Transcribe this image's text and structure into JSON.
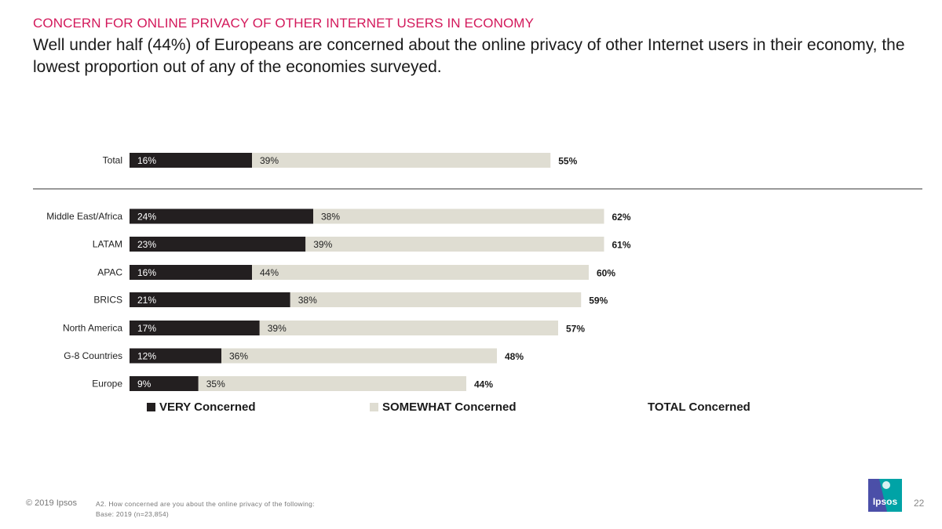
{
  "header": {
    "kicker": "CONCERN FOR ONLINE PRIVACY OF OTHER INTERNET USERS IN ECONOMY",
    "headline": "Well under half (44%) of Europeans are concerned about the online privacy of other Internet users in their economy, the lowest proportion out of any of the economies surveyed."
  },
  "chart_data": {
    "type": "bar",
    "orientation": "horizontal",
    "stacked": true,
    "categories": [
      "Total",
      "Middle East/Africa",
      "LATAM",
      "APAC",
      "BRICS",
      "North America",
      "G-8 Countries",
      "Europe"
    ],
    "series": [
      {
        "name": "VERY Concerned",
        "values": [
          16,
          24,
          23,
          16,
          21,
          17,
          12,
          9
        ],
        "color": "#231f20"
      },
      {
        "name": "SOMEWHAT Concerned",
        "values": [
          39,
          38,
          39,
          44,
          38,
          39,
          36,
          35
        ],
        "color": "#dfddd2"
      }
    ],
    "totals": {
      "name": "TOTAL Concerned",
      "values": [
        55,
        62,
        61,
        60,
        59,
        57,
        48,
        44
      ]
    },
    "value_suffix": "%",
    "xlim": [
      0,
      100
    ],
    "legend_position": "bottom"
  },
  "legend": {
    "very": "VERY Concerned",
    "somewhat": "SOMEWHAT Concerned",
    "total": "TOTAL Concerned"
  },
  "footer": {
    "copyright": "© 2019 Ipsos",
    "question": "A2. How concerned are you about the online privacy of the following:",
    "base": "Base: 2019 (n=23,854)",
    "page_number": "22",
    "logo_text": "Ipsos"
  },
  "colors": {
    "accent": "#d3195b",
    "very": "#231f20",
    "somewhat": "#dfddd2",
    "logo_blue": "#4b4fa8",
    "logo_teal": "#00a3a6"
  }
}
